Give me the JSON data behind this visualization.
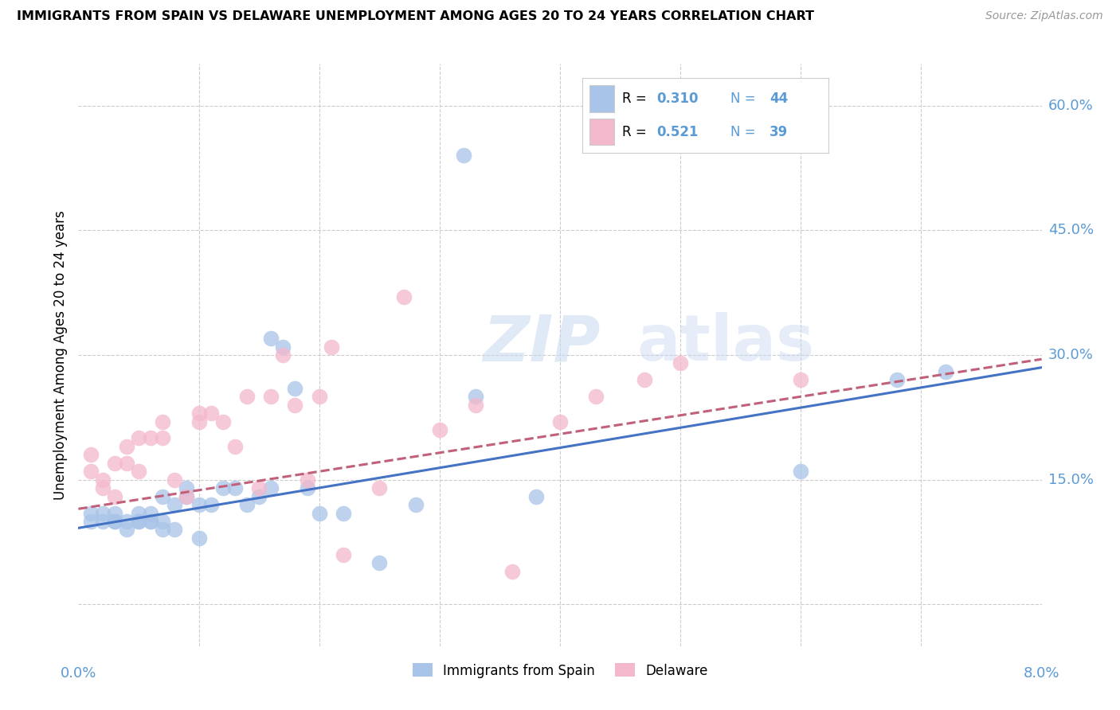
{
  "title": "IMMIGRANTS FROM SPAIN VS DELAWARE UNEMPLOYMENT AMONG AGES 20 TO 24 YEARS CORRELATION CHART",
  "source": "Source: ZipAtlas.com",
  "ylabel": "Unemployment Among Ages 20 to 24 years",
  "y_ticks": [
    0.0,
    0.15,
    0.3,
    0.45,
    0.6
  ],
  "y_tick_labels": [
    "",
    "15.0%",
    "30.0%",
    "45.0%",
    "60.0%"
  ],
  "xlim": [
    0.0,
    0.08
  ],
  "ylim": [
    -0.05,
    0.65
  ],
  "color_blue": "#a8c4e8",
  "color_pink": "#f4b8cc",
  "color_blue_text": "#5b9bd5",
  "color_trend_blue": "#4472c4",
  "color_trend_pink": "#c0607a",
  "color_grid": "#cccccc",
  "watermark": "ZIPatlas",
  "blue_scatter_x": [
    0.001,
    0.001,
    0.002,
    0.002,
    0.003,
    0.003,
    0.003,
    0.004,
    0.004,
    0.005,
    0.005,
    0.005,
    0.006,
    0.006,
    0.006,
    0.007,
    0.007,
    0.007,
    0.008,
    0.008,
    0.009,
    0.009,
    0.01,
    0.01,
    0.011,
    0.012,
    0.013,
    0.014,
    0.015,
    0.016,
    0.016,
    0.017,
    0.018,
    0.019,
    0.02,
    0.022,
    0.025,
    0.028,
    0.032,
    0.033,
    0.038,
    0.06,
    0.068,
    0.072
  ],
  "blue_scatter_y": [
    0.1,
    0.11,
    0.1,
    0.11,
    0.1,
    0.11,
    0.1,
    0.1,
    0.09,
    0.1,
    0.1,
    0.11,
    0.1,
    0.11,
    0.1,
    0.1,
    0.09,
    0.13,
    0.09,
    0.12,
    0.14,
    0.13,
    0.08,
    0.12,
    0.12,
    0.14,
    0.14,
    0.12,
    0.13,
    0.14,
    0.32,
    0.31,
    0.26,
    0.14,
    0.11,
    0.11,
    0.05,
    0.12,
    0.54,
    0.25,
    0.13,
    0.16,
    0.27,
    0.28
  ],
  "pink_scatter_x": [
    0.001,
    0.001,
    0.002,
    0.002,
    0.003,
    0.003,
    0.004,
    0.004,
    0.005,
    0.005,
    0.006,
    0.007,
    0.007,
    0.008,
    0.009,
    0.01,
    0.01,
    0.011,
    0.012,
    0.013,
    0.014,
    0.015,
    0.016,
    0.017,
    0.018,
    0.019,
    0.02,
    0.021,
    0.022,
    0.025,
    0.027,
    0.03,
    0.033,
    0.036,
    0.04,
    0.043,
    0.047,
    0.05,
    0.06
  ],
  "pink_scatter_y": [
    0.18,
    0.16,
    0.15,
    0.14,
    0.17,
    0.13,
    0.17,
    0.19,
    0.16,
    0.2,
    0.2,
    0.2,
    0.22,
    0.15,
    0.13,
    0.22,
    0.23,
    0.23,
    0.22,
    0.19,
    0.25,
    0.14,
    0.25,
    0.3,
    0.24,
    0.15,
    0.25,
    0.31,
    0.06,
    0.14,
    0.37,
    0.21,
    0.24,
    0.04,
    0.22,
    0.25,
    0.27,
    0.29,
    0.27
  ],
  "blue_trend_x": [
    0.0,
    0.08
  ],
  "blue_trend_y": [
    0.092,
    0.285
  ],
  "pink_trend_x": [
    0.0,
    0.08
  ],
  "pink_trend_y": [
    0.115,
    0.295
  ],
  "legend_items": [
    {
      "color": "#a8c4e8",
      "r_label": "R = 0.310",
      "n_label": "N = 44"
    },
    {
      "color": "#f4b8cc",
      "r_label": "R = 0.521",
      "n_label": "N = 39"
    }
  ],
  "bottom_legend": [
    "Immigrants from Spain",
    "Delaware"
  ]
}
